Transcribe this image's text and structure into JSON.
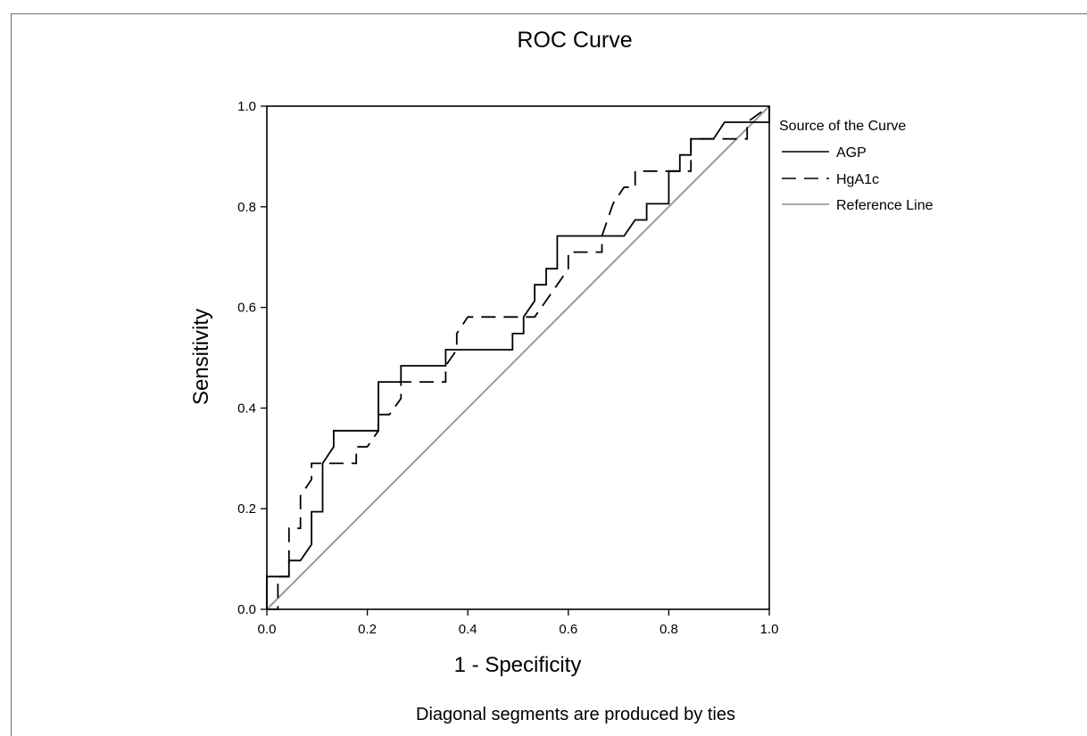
{
  "chart_data": {
    "type": "line",
    "title": "ROC Curve",
    "xlabel": "1 - Specificity",
    "ylabel": "Sensitivity",
    "footnote": "Diagonal segments are produced by ties",
    "xlim": [
      0,
      1
    ],
    "ylim": [
      0,
      1
    ],
    "xticks": [
      "0.0",
      "0.2",
      "0.4",
      "0.6",
      "0.8",
      "1.0"
    ],
    "yticks": [
      "0.0",
      "0.2",
      "0.4",
      "0.6",
      "0.8",
      "1.0"
    ],
    "grid": false,
    "legend": {
      "title": "Source of the Curve",
      "position": "right-top"
    },
    "series": [
      {
        "name": "AGP",
        "style": "solid",
        "color": "#000000",
        "x": [
          0.0,
          0.0,
          0.022,
          0.044,
          0.044,
          0.067,
          0.089,
          0.089,
          0.111,
          0.111,
          0.133,
          0.133,
          0.222,
          0.222,
          0.267,
          0.267,
          0.356,
          0.356,
          0.378,
          0.378,
          0.489,
          0.489,
          0.511,
          0.511,
          0.533,
          0.533,
          0.556,
          0.556,
          0.578,
          0.578,
          0.711,
          0.711,
          0.733,
          0.733,
          0.756,
          0.756,
          0.8,
          0.8,
          0.822,
          0.822,
          0.844,
          0.844,
          0.889,
          0.889,
          0.911,
          0.911,
          1.0,
          1.0
        ],
        "y": [
          0.0,
          0.065,
          0.065,
          0.065,
          0.097,
          0.097,
          0.129,
          0.194,
          0.194,
          0.29,
          0.323,
          0.355,
          0.355,
          0.452,
          0.452,
          0.484,
          0.484,
          0.516,
          0.516,
          0.516,
          0.516,
          0.548,
          0.548,
          0.581,
          0.613,
          0.645,
          0.645,
          0.677,
          0.677,
          0.742,
          0.742,
          0.742,
          0.774,
          0.774,
          0.774,
          0.806,
          0.806,
          0.871,
          0.871,
          0.903,
          0.903,
          0.935,
          0.935,
          0.935,
          0.968,
          0.968,
          0.968,
          1.0
        ]
      },
      {
        "name": "HgA1c",
        "style": "dashed",
        "color": "#000000",
        "x": [
          0.0,
          0.022,
          0.022,
          0.044,
          0.044,
          0.067,
          0.067,
          0.089,
          0.089,
          0.111,
          0.178,
          0.178,
          0.2,
          0.222,
          0.222,
          0.244,
          0.267,
          0.267,
          0.356,
          0.356,
          0.378,
          0.378,
          0.4,
          0.533,
          0.533,
          0.578,
          0.6,
          0.6,
          0.667,
          0.667,
          0.689,
          0.711,
          0.733,
          0.733,
          0.778,
          0.822,
          0.844,
          0.844,
          0.867,
          0.933,
          0.956,
          0.956,
          1.0
        ],
        "y": [
          0.0,
          0.0,
          0.065,
          0.065,
          0.161,
          0.161,
          0.226,
          0.258,
          0.29,
          0.29,
          0.29,
          0.323,
          0.323,
          0.355,
          0.387,
          0.387,
          0.419,
          0.452,
          0.452,
          0.484,
          0.516,
          0.548,
          0.581,
          0.581,
          0.581,
          0.645,
          0.677,
          0.71,
          0.71,
          0.742,
          0.806,
          0.839,
          0.839,
          0.871,
          0.871,
          0.871,
          0.871,
          0.935,
          0.935,
          0.935,
          0.935,
          0.968,
          1.0
        ]
      },
      {
        "name": "Reference Line",
        "style": "solid",
        "color": "#999999",
        "x": [
          0,
          1
        ],
        "y": [
          0,
          1
        ]
      }
    ]
  }
}
